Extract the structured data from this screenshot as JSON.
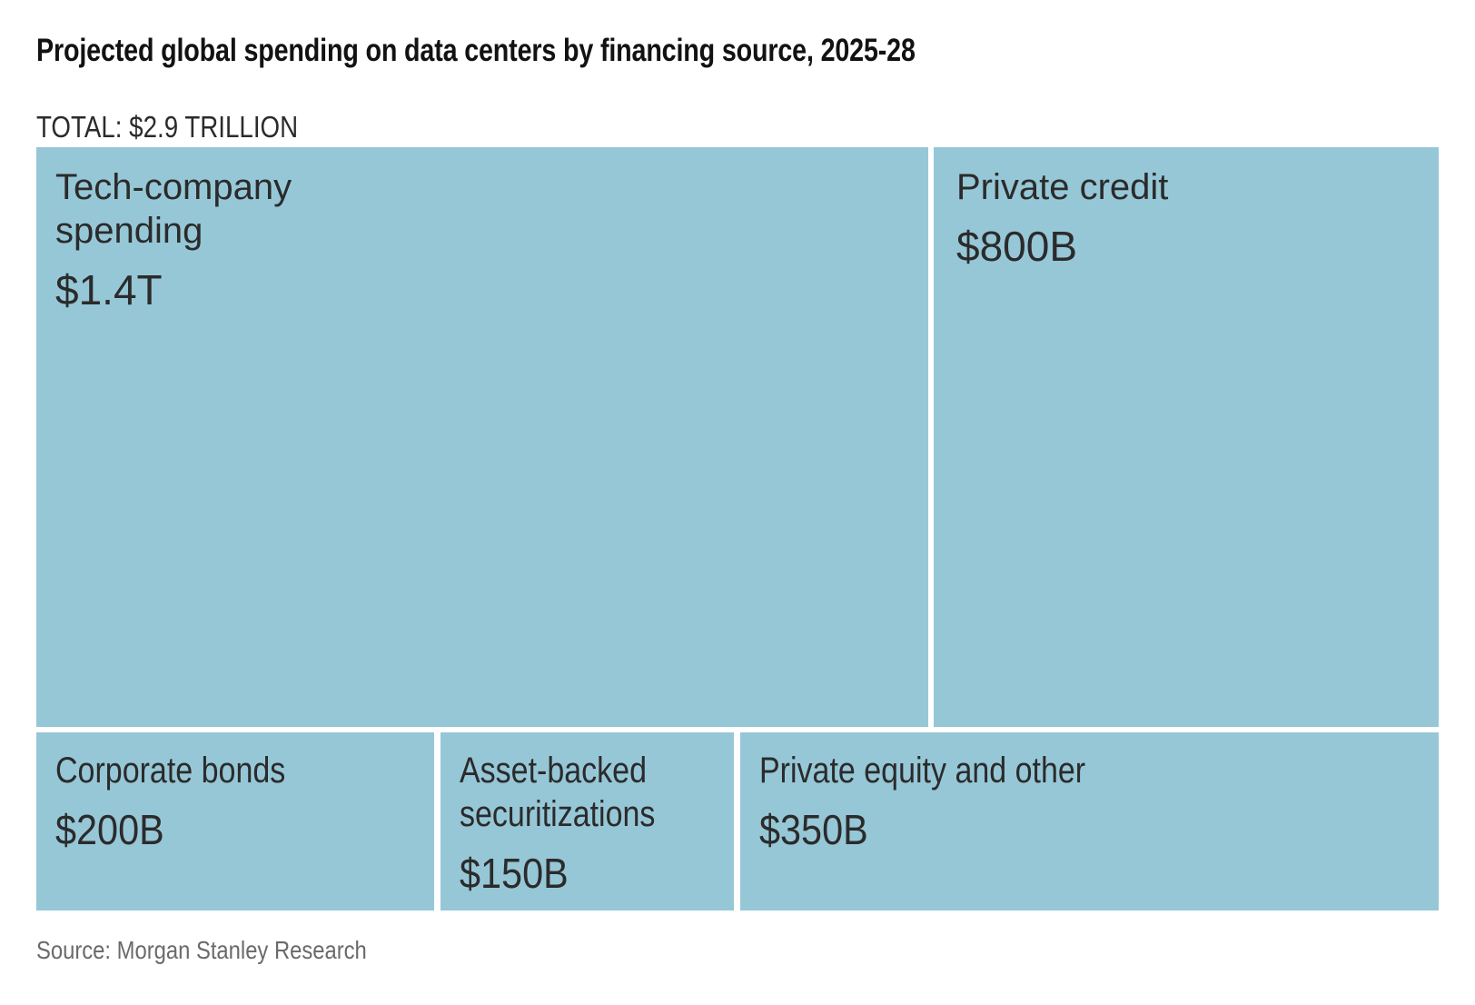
{
  "title": "Projected global spending on data centers by financing source, 2025-28",
  "total": "TOTAL: $2.9 TRILLION",
  "source": "Source: Morgan Stanley Research",
  "colors": {
    "tile": "#96c7d7",
    "tile_text": "#2b2b2b",
    "title_text": "#121212",
    "source_text": "#6a6a6a",
    "background": "#ffffff",
    "gap": "#ffffff"
  },
  "treemap": {
    "tiles": [
      {
        "id": "tech-company-spending",
        "line1": "Tech-company",
        "line2": "spending",
        "value": "$1.4T"
      },
      {
        "id": "private-credit",
        "line1": "Private credit",
        "value": "$800B"
      },
      {
        "id": "corporate-bonds",
        "line1": "Corporate bonds",
        "value": "$200B"
      },
      {
        "id": "asset-backed-securitizations",
        "line1": "Asset-backed",
        "line2": "securitizations",
        "value": "$150B"
      },
      {
        "id": "private-equity-and-other",
        "line1": "Private equity and other",
        "value": "$350B"
      }
    ]
  },
  "chart_data": {
    "type": "treemap",
    "title": "Projected global spending on data centers by financing source, 2025-28",
    "subtitle": "TOTAL: $2.9 TRILLION",
    "total_value_trillions_usd": 2.9,
    "unit": "USD billions",
    "source": "Source: Morgan Stanley Research",
    "segments": [
      {
        "label": "Tech-company spending",
        "value": 1400,
        "display_value": "$1.4T"
      },
      {
        "label": "Private credit",
        "value": 800,
        "display_value": "$800B"
      },
      {
        "label": "Corporate bonds",
        "value": 200,
        "display_value": "$200B"
      },
      {
        "label": "Asset-backed securitizations",
        "value": 150,
        "display_value": "$150B"
      },
      {
        "label": "Private equity and other",
        "value": 350,
        "display_value": "$350B"
      }
    ],
    "layout": "two rows: top row = [Tech-company spending, Private credit]; bottom row = [Corporate bonds, Asset-backed securitizations, Private equity and other]; white gaps between tiles",
    "tile_color": "#96c7d7"
  }
}
